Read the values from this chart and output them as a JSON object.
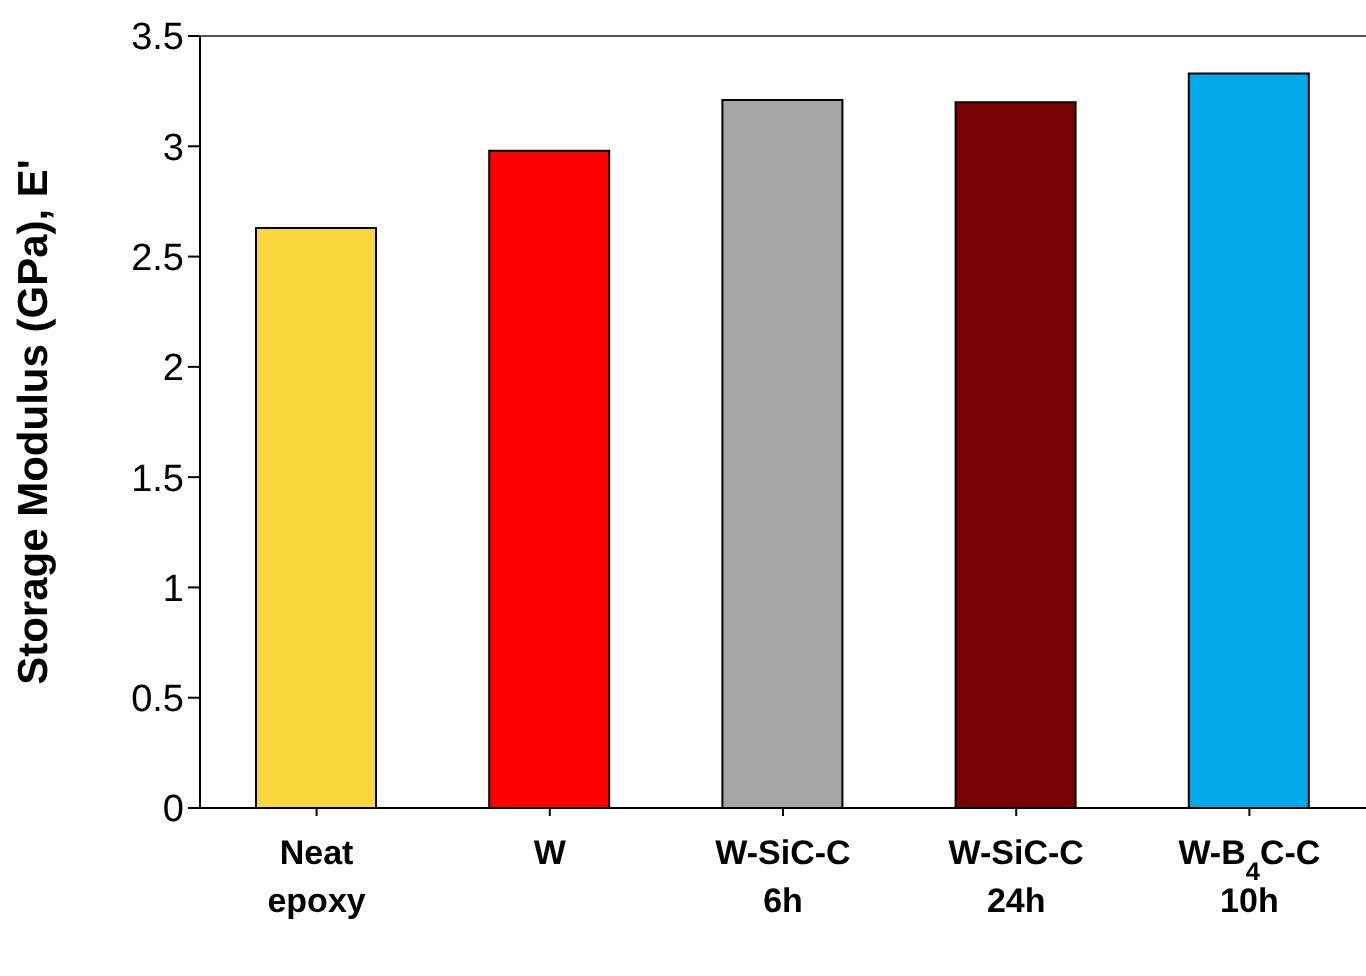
{
  "chart_data": {
    "type": "bar",
    "categories": [
      "Neat epoxy",
      "W",
      "W-SiC-C 6h",
      "W-SiC-C 24h",
      "W-B$_{4}$C-C 10h"
    ],
    "values": [
      2.63,
      2.98,
      3.21,
      3.2,
      3.33
    ],
    "colors": [
      "#fad73c",
      "#ff0000",
      "#a5a5a5",
      "#760303",
      "#00aae8"
    ],
    "ylabel": "Storage Modulus (GPa), E'",
    "ylim": [
      0,
      3.5
    ],
    "yticks": [
      0,
      0.5,
      1,
      1.5,
      2,
      2.5,
      3,
      3.5
    ],
    "grid": false
  }
}
